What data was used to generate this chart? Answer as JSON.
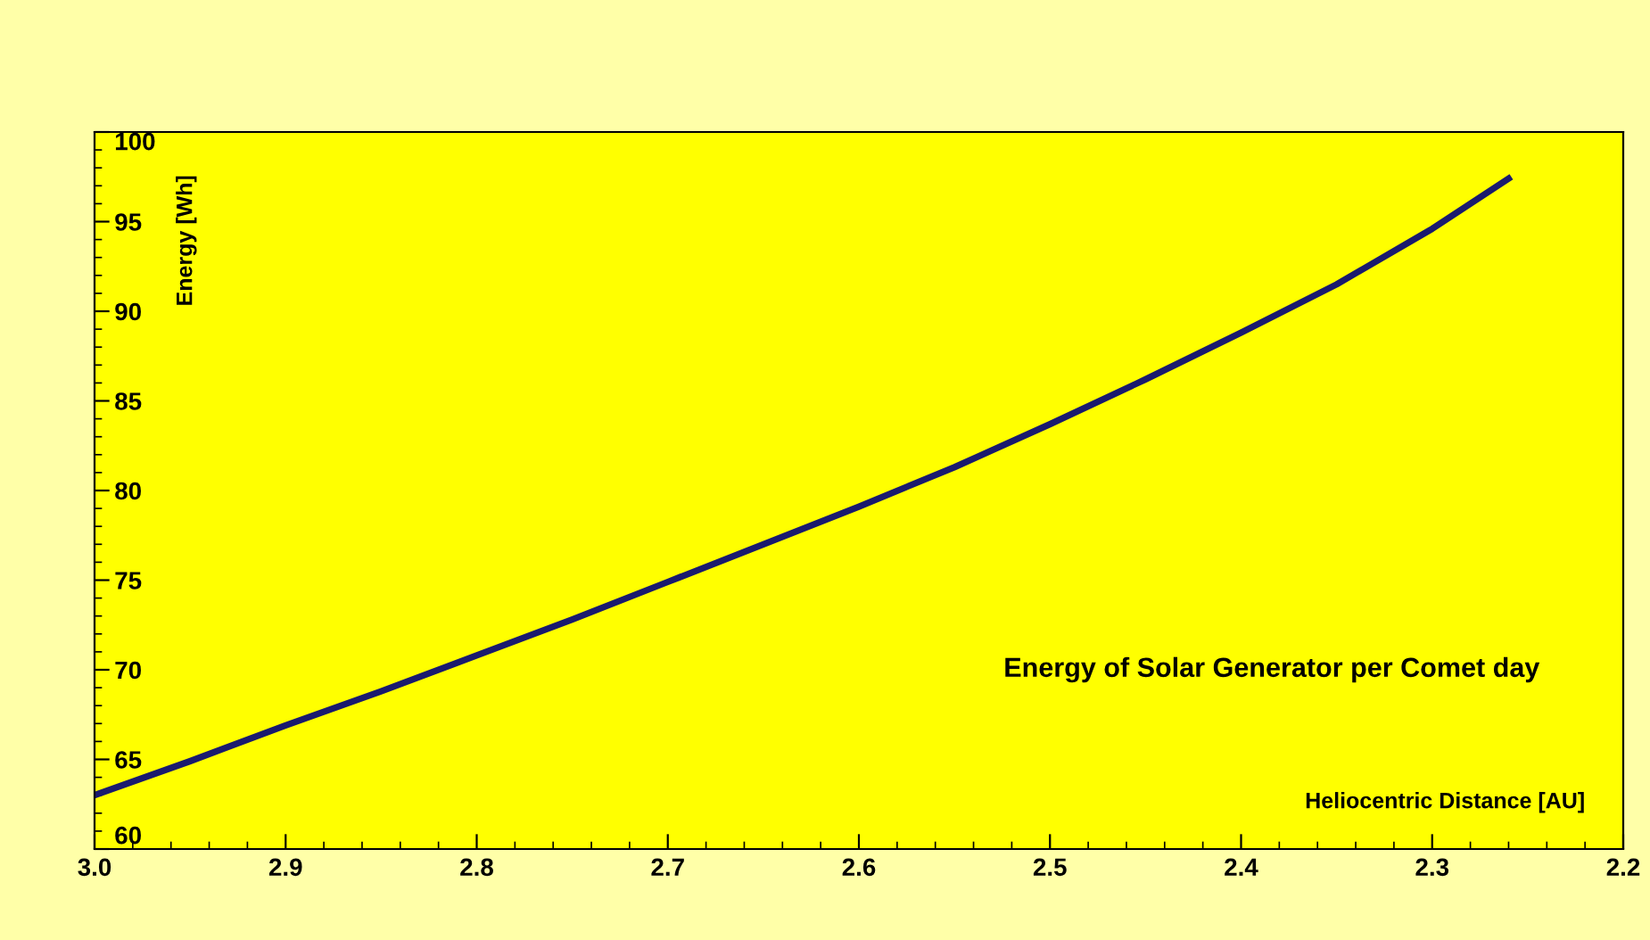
{
  "chart_data": {
    "type": "line",
    "title": "Energy of Solar Generator per Comet day",
    "xlabel": "Heliocentric Distance [AU]",
    "ylabel": "Energy [Wh]",
    "x": [
      3.0,
      2.95,
      2.9,
      2.85,
      2.8,
      2.75,
      2.7,
      2.65,
      2.6,
      2.55,
      2.5,
      2.45,
      2.4,
      2.35,
      2.3,
      2.26
    ],
    "series": [
      {
        "color": "#1a1a6e",
        "values": [
          63.0,
          64.9,
          66.9,
          68.8,
          70.8,
          72.8,
          74.9,
          77.0,
          79.1,
          81.3,
          83.7,
          86.2,
          88.8,
          91.5,
          94.6,
          97.4
        ]
      }
    ],
    "xlim": [
      3.0,
      2.2
    ],
    "ylim": [
      60,
      100
    ],
    "xticks": [
      {
        "value": 3.0,
        "label": "3.0"
      },
      2.9,
      2.8,
      2.7,
      2.6,
      2.5,
      2.4,
      2.3,
      2.2
    ],
    "yticks": [
      60,
      65,
      70,
      75,
      80,
      85,
      90,
      95,
      100
    ],
    "grid": false,
    "legend": false,
    "marker": "none",
    "line_style": "solid"
  }
}
